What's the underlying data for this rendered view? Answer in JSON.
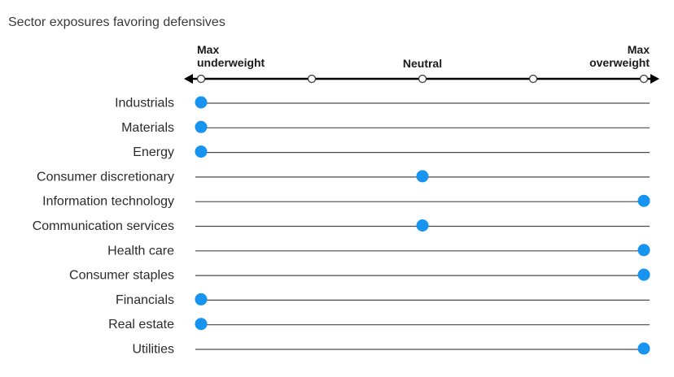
{
  "chart_data": {
    "type": "scatter",
    "title": "Sector exposures favoring defensives",
    "scale_labels": {
      "min": [
        "Max",
        "underweight"
      ],
      "mid": [
        "Neutral"
      ],
      "max": [
        "Max",
        "overweight"
      ]
    },
    "scale_min": 0,
    "scale_max": 4,
    "scale_ticks": [
      0,
      1,
      2,
      3,
      4
    ],
    "categories": [
      "Industrials",
      "Materials",
      "Energy",
      "Consumer discretionary",
      "Information technology",
      "Communication services",
      "Health care",
      "Consumer staples",
      "Financials",
      "Real estate",
      "Utilities"
    ],
    "values": [
      0,
      0,
      0,
      2,
      4,
      2,
      4,
      4,
      0,
      0,
      4
    ],
    "colors": {
      "marker": "#1793f0",
      "axis": "#000000",
      "row_line": "#4a4a4a",
      "tick_fill": "#ffffff"
    }
  }
}
